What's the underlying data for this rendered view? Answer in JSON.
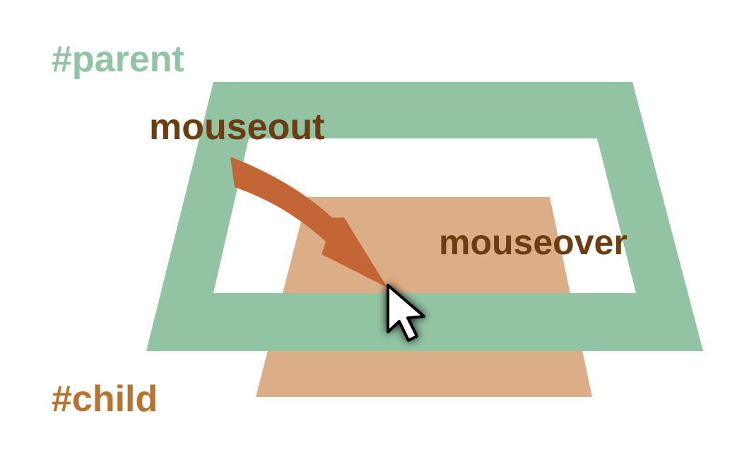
{
  "labels": {
    "parent": "#parent",
    "child": "#child",
    "mouseout": "mouseout",
    "mouseover": "mouseover"
  },
  "colors": {
    "parent": "#92c3a3",
    "child": "#dcae87",
    "event_text": "#6b3d10",
    "parent_label": "#92c3a3",
    "child_label": "#b87330",
    "arrow": "#c46536",
    "background": "#ffffff"
  },
  "icons": {
    "pointer": "mouse-cursor-icon",
    "arrow": "curved-arrow-icon"
  }
}
